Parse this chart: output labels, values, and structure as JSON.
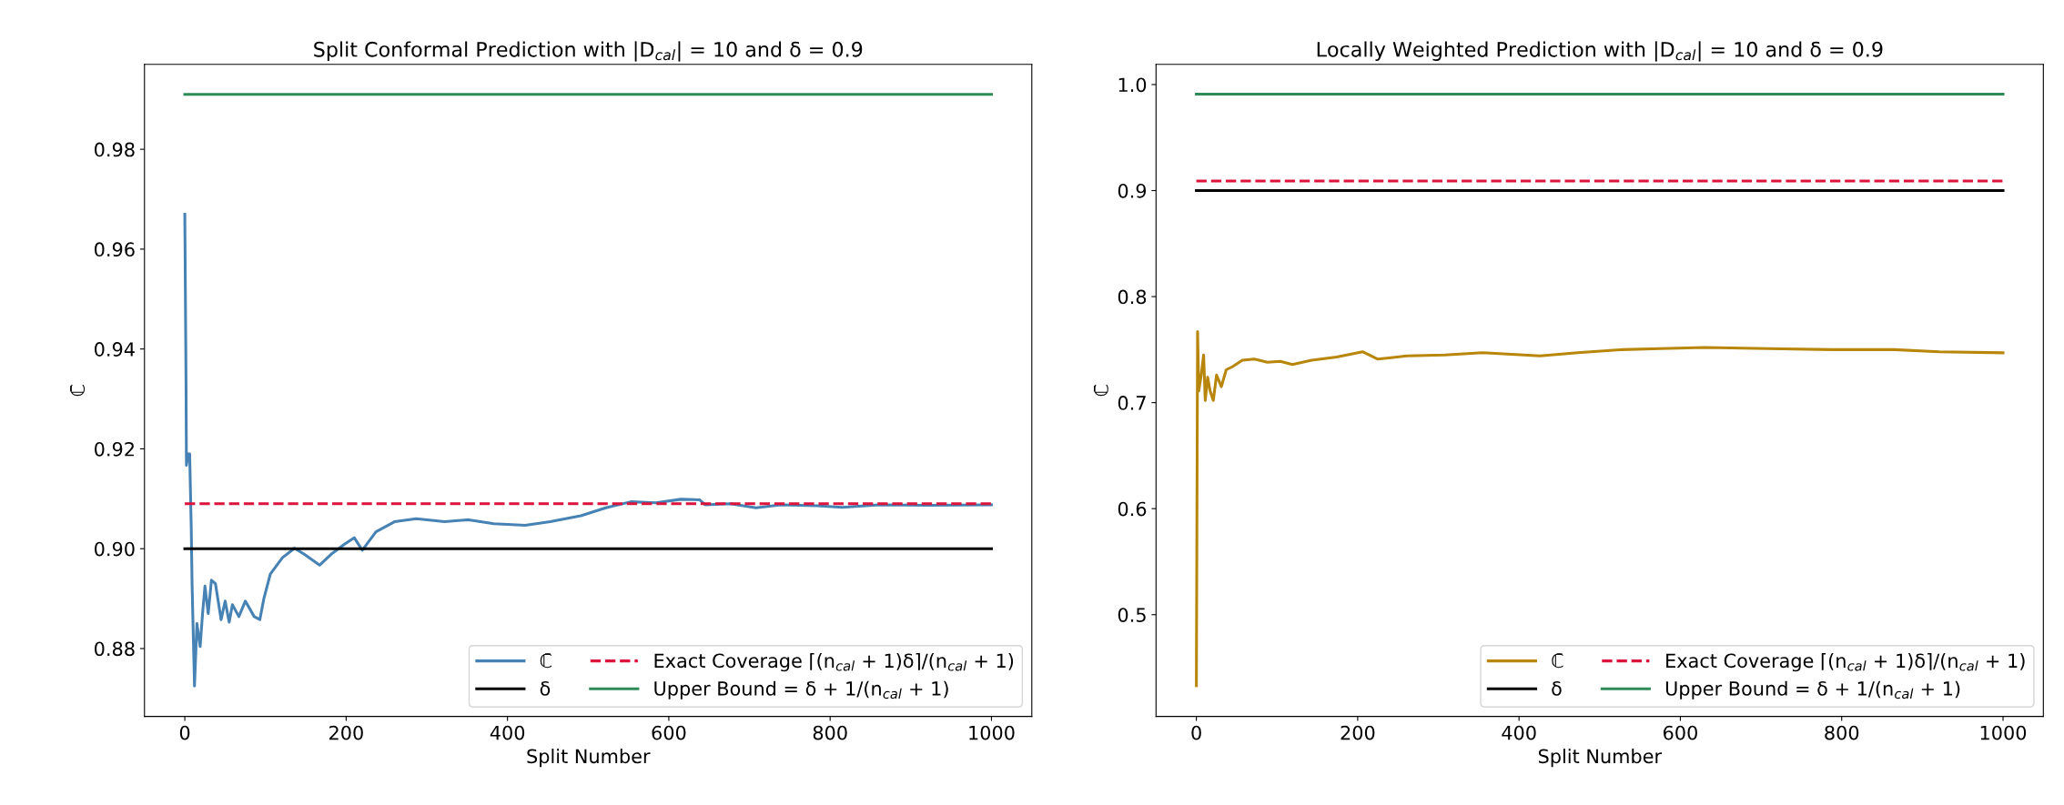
{
  "chart_data": [
    {
      "type": "line",
      "title": "Split Conformal Prediction with |D$_{cal}$| = 10 and δ = 0.9",
      "xlabel": "Split Number",
      "ylabel": "ℂ̄",
      "xlim": [
        -50,
        1050
      ],
      "xticks": [
        0,
        200,
        400,
        600,
        800,
        1000
      ],
      "ylim": [
        0.8664,
        0.997
      ],
      "yticks": [
        {
          "value": 0.88,
          "label": "0.88"
        },
        {
          "value": 0.9,
          "label": "0.90"
        },
        {
          "value": 0.92,
          "label": "0.92"
        },
        {
          "value": 0.94,
          "label": "0.94"
        },
        {
          "value": 0.96,
          "label": "0.96"
        },
        {
          "value": 0.98,
          "label": "0.98"
        }
      ],
      "legend": "bottom right",
      "series": [
        {
          "name": "ℂ̄",
          "color": "#4682b4",
          "line_style": "solid",
          "x": [
            0,
            1.5,
            2,
            4,
            6,
            8,
            9,
            12,
            15,
            19,
            22,
            25,
            29,
            33,
            38,
            45,
            50,
            55,
            59,
            67,
            75,
            86,
            93,
            98,
            106,
            121,
            136,
            148,
            167,
            183,
            198,
            210,
            220,
            237,
            260,
            287,
            322,
            352,
            383,
            422,
            453,
            491,
            522,
            553,
            584,
            615,
            638,
            645,
            676,
            708,
            739,
            784,
            815,
            861,
            923,
            1000
          ],
          "values": [
            0.967,
            0.9336,
            0.9167,
            0.919,
            0.919,
            0.904,
            0.893,
            0.8725,
            0.885,
            0.8804,
            0.887,
            0.8925,
            0.887,
            0.8937,
            0.893,
            0.8858,
            0.8895,
            0.8853,
            0.8888,
            0.8864,
            0.8895,
            0.8864,
            0.8858,
            0.89,
            0.8949,
            0.8982,
            0.9001,
            0.8989,
            0.8967,
            0.8991,
            0.9009,
            0.9022,
            0.8997,
            0.9034,
            0.9054,
            0.906,
            0.9054,
            0.9058,
            0.905,
            0.9047,
            0.9054,
            0.9066,
            0.9082,
            0.9094,
            0.9092,
            0.9099,
            0.9098,
            0.9088,
            0.909,
            0.9082,
            0.9088,
            0.9086,
            0.9083,
            0.9088,
            0.9087,
            0.9088
          ]
        },
        {
          "name": "δ",
          "color": "#000000",
          "line_style": "solid",
          "x": [
            0,
            1000
          ],
          "values": [
            0.9,
            0.9
          ]
        },
        {
          "name": "Exact Coverage ⌈(n$_{cal}$ + 1)δ⌉/(n$_{cal}$ + 1)",
          "color": "#dc143c",
          "line_style": "dashed",
          "x": [
            0,
            1000
          ],
          "values": [
            0.909,
            0.909
          ]
        },
        {
          "name": "Upper Bound = δ + 1/(n$_{cal}$ + 1)",
          "color": "#2e8b57",
          "line_style": "solid",
          "x": [
            0,
            1000
          ],
          "values": [
            0.991,
            0.991
          ]
        }
      ]
    },
    {
      "type": "line",
      "title": "Locally Weighted Prediction with |D$_{cal}$| = 10 and δ = 0.9",
      "xlabel": "Split Number",
      "ylabel": "ℂ̄",
      "xlim": [
        -50,
        1050
      ],
      "xticks": [
        0,
        200,
        400,
        600,
        800,
        1000
      ],
      "ylim": [
        0.404,
        1.019
      ],
      "yticks": [
        0.5,
        0.6,
        0.7,
        0.8,
        0.9,
        {
          "value": 1.0,
          "label": "1.0"
        }
      ],
      "legend": "bottom right",
      "series": [
        {
          "name": "ℂ̄",
          "color": "#b8860b",
          "line_style": "solid",
          "x": [
            0,
            1.5,
            3,
            6,
            9,
            11,
            14,
            17,
            21,
            25,
            31,
            37,
            45,
            57,
            72,
            88,
            104,
            119,
            143,
            174,
            206,
            225,
            261,
            308,
            355,
            426,
            473,
            528,
            575,
            630,
            709,
            787,
            865,
            921,
            1000
          ],
          "values": [
            0.433,
            0.767,
            0.711,
            0.726,
            0.745,
            0.702,
            0.724,
            0.711,
            0.702,
            0.726,
            0.715,
            0.731,
            0.734,
            0.74,
            0.741,
            0.738,
            0.739,
            0.736,
            0.74,
            0.743,
            0.748,
            0.741,
            0.744,
            0.745,
            0.747,
            0.744,
            0.747,
            0.75,
            0.751,
            0.752,
            0.751,
            0.75,
            0.75,
            0.748,
            0.747
          ]
        },
        {
          "name": "δ",
          "color": "#000000",
          "line_style": "solid",
          "x": [
            0,
            1000
          ],
          "values": [
            0.9,
            0.9
          ]
        },
        {
          "name": "Exact Coverage ⌈(n$_{cal}$ + 1)δ⌉/(n$_{cal}$ + 1)",
          "color": "#dc143c",
          "line_style": "dashed",
          "x": [
            0,
            1000
          ],
          "values": [
            0.909,
            0.909
          ]
        },
        {
          "name": "Upper Bound = δ + 1/(n$_{cal}$ + 1)",
          "color": "#2e8b57",
          "line_style": "solid",
          "x": [
            0,
            1000
          ],
          "values": [
            0.991,
            0.991
          ]
        }
      ]
    }
  ]
}
